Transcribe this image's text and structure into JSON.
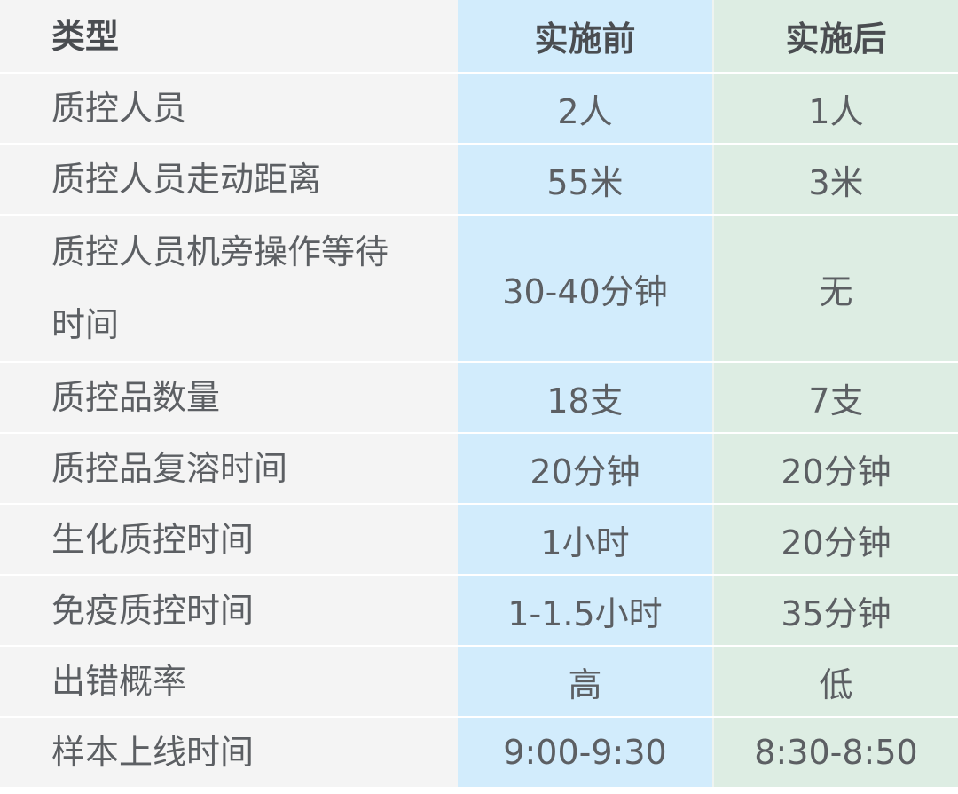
{
  "header": {
    "type": "类型",
    "before": "实施前",
    "after": "实施后"
  },
  "rows": [
    {
      "type": "质控人员",
      "before": "2人",
      "after": "1人"
    },
    {
      "type": "质控人员走动距离",
      "before": "55米",
      "after": "3米"
    },
    {
      "type": "质控人员机旁操作等待时间",
      "before": "30-40分钟",
      "after": "无"
    },
    {
      "type": "质控品数量",
      "before": "18支",
      "after": "7支"
    },
    {
      "type": "质控品复溶时间",
      "before": "20分钟",
      "after": "20分钟"
    },
    {
      "type": "生化质控时间",
      "before": "1小时",
      "after": "20分钟"
    },
    {
      "type": "免疫质控时间",
      "before": "1-1.5小时",
      "after": "35分钟"
    },
    {
      "type": "出错概率",
      "before": "高",
      "after": "低"
    },
    {
      "type": "样本上线时间",
      "before": "9:00-9:30",
      "after": "8:30-8:50"
    }
  ],
  "colors": {
    "type_col": "#f4f4f4",
    "before_col": "#d2ecfc",
    "after_col": "#ddede3"
  }
}
